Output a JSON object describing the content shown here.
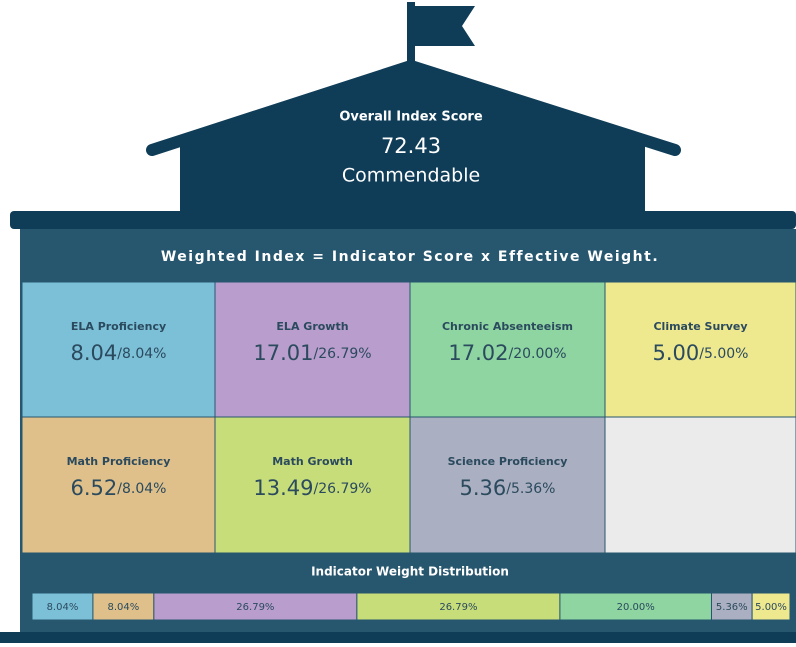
{
  "header": {
    "label": "Overall Index Score",
    "score": "72.43",
    "rating": "Commendable"
  },
  "formula": "Weighted Index = Indicator Score x Effective Weight.",
  "tiles": [
    {
      "name": "ELA Proficiency",
      "score": "8.04",
      "weight": "/8.04%",
      "color": "#7cc0d8"
    },
    {
      "name": "ELA Growth",
      "score": "17.01",
      "weight": "/26.79%",
      "color": "#b99dcc"
    },
    {
      "name": "Chronic Absenteeism",
      "score": "17.02",
      "weight": "/20.00%",
      "color": "#8ed5a1"
    },
    {
      "name": "Climate Survey",
      "score": "5.00",
      "weight": "/5.00%",
      "color": "#eee88f"
    },
    {
      "name": "Math Proficiency",
      "score": "6.52",
      "weight": "/8.04%",
      "color": "#dfc08a"
    },
    {
      "name": "Math Growth",
      "score": "13.49",
      "weight": "/26.79%",
      "color": "#c7dd7a"
    },
    {
      "name": "Science Proficiency",
      "score": "5.36",
      "weight": "/5.36%",
      "color": "#aaafc1"
    }
  ],
  "distribution": {
    "title": "Indicator Weight Distribution",
    "segments": [
      {
        "value": 8.04,
        "label": "8.04%",
        "color": "#7cc0d8"
      },
      {
        "value": 8.04,
        "label": "8.04%",
        "color": "#dfc08a"
      },
      {
        "value": 26.79,
        "label": "26.79%",
        "color": "#b99dcc"
      },
      {
        "value": 26.79,
        "label": "26.79%",
        "color": "#c7dd7a"
      },
      {
        "value": 20.0,
        "label": "20.00%",
        "color": "#8ed5a1"
      },
      {
        "value": 5.36,
        "label": "5.36%",
        "color": "#aaafc1"
      },
      {
        "value": 5.0,
        "label": "5.00%",
        "color": "#eee88f"
      }
    ]
  }
}
